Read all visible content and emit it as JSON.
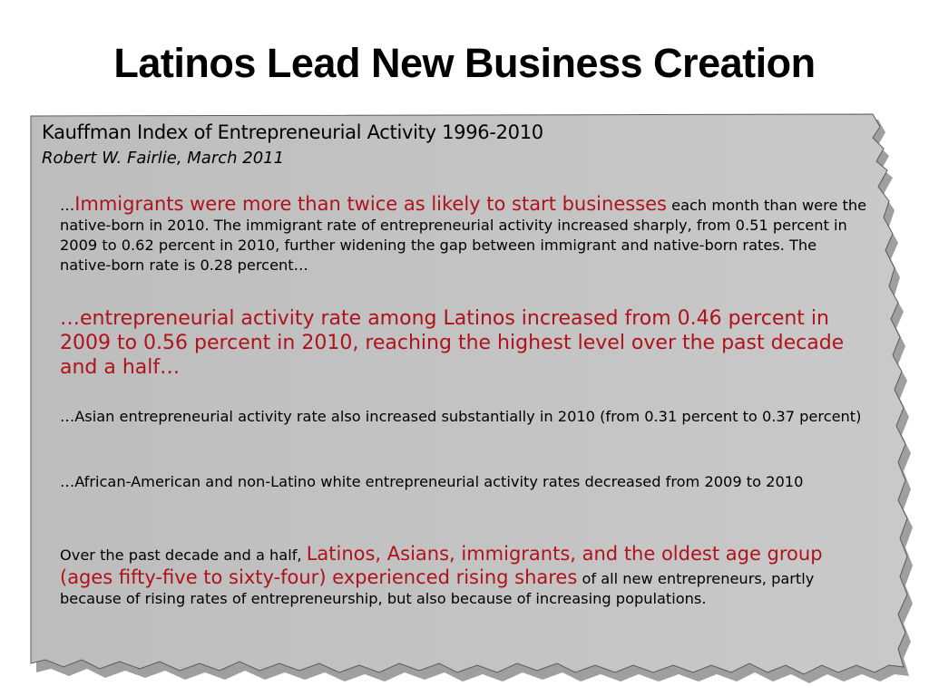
{
  "slide": {
    "title": "Latinos Lead New Business Creation"
  },
  "card": {
    "heading": "Kauffman Index of Entrepreneurial Activity 1996-2010",
    "author": "Robert W. Fairlie, March 2011",
    "p1": {
      "prefix": "…",
      "highlight": "Immigrants were more than twice as likely to start businesses",
      "rest": " each month than were the native-born in 2010. The immigrant rate of entrepreneurial activity increased sharply, from 0.51 percent in 2009 to 0.62 percent in 2010, further widening the gap between immigrant and native-born rates. The native-born rate is 0.28 percent…"
    },
    "p2": "…entrepreneurial activity rate among Latinos increased from 0.46 percent in 2009 to 0.56 percent in 2010, reaching the highest level over the past decade and a half…",
    "p3": "…Asian entrepreneurial activity rate also increased substantially in 2010 (from 0.31 percent to 0.37 percent)",
    "p4": "…African-American and non-Latino white entrepreneurial activity rates decreased from 2009 to 2010",
    "p5": {
      "prefix": "Over the past decade and a half, ",
      "highlight": "Latinos, Asians, immigrants, and the oldest age group (ages fifty-five to sixty-four) experienced rising shares",
      "rest": " of all new entrepreneurs, partly because of rising rates of entrepreneurship, but also because of increasing populations."
    }
  },
  "colors": {
    "card_fill": "#c4c4c4",
    "card_shadow": "#8a8a8a",
    "highlight": "#b0121b"
  }
}
